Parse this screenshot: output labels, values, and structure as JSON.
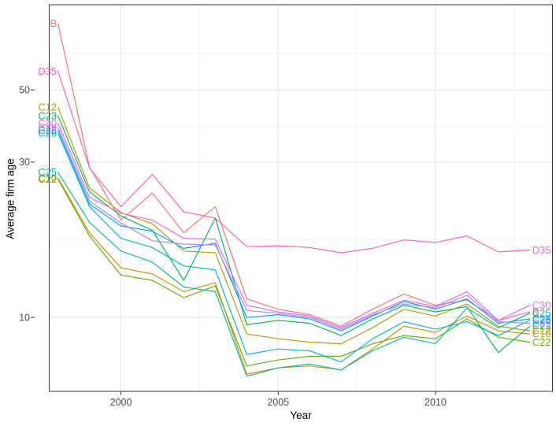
{
  "figure": {
    "kind": "line-chart-direct-labels",
    "background": "#ffffff",
    "panel_border_color": "#333333",
    "grid_major_color": "#e4e4e4",
    "grid_minor_color": "#efefef",
    "tick_color": "#333333",
    "tick_label_color": "#4d4d4d"
  },
  "chart_data": {
    "type": "line",
    "title": "",
    "xlabel": "Year",
    "ylabel": "Average firm age",
    "y_scale": "log10",
    "grid": true,
    "legend": "direct labels at both line ends",
    "x": [
      1998,
      1999,
      2000,
      2001,
      2002,
      2003,
      2004,
      2005,
      2006,
      2007,
      2008,
      2009,
      2010,
      2011,
      2012,
      2013
    ],
    "x_ticks": [
      2000,
      2005,
      2010
    ],
    "x_minor": [
      2002.5,
      2007.5,
      2012.5
    ],
    "xlim": [
      1997.72,
      2013.72
    ],
    "y_ticks": [
      10,
      30,
      50
    ],
    "y_minor": [
      17.3,
      38.7,
      64.6
    ],
    "ylim": [
      5.93,
      91.3
    ],
    "series": [
      {
        "name": "B",
        "color": "#F8766D",
        "values": [
          80.0,
          29.0,
          19.9,
          24.1,
          18.2,
          21.9,
          11.4,
          10.6,
          10.2,
          9.4,
          10.6,
          11.8,
          10.9,
          11.3,
          9.8,
          10.4
        ]
      },
      {
        "name": "C10",
        "color": "#DB8E00",
        "values": [
          26.8,
          18.2,
          14.2,
          13.6,
          12.0,
          12.8,
          6.7,
          7.0,
          7.1,
          6.9,
          8.0,
          9.4,
          9.0,
          10.1,
          9.1,
          8.9
        ]
      },
      {
        "name": "C12",
        "color": "#AEA200",
        "values": [
          44.2,
          25.0,
          21.0,
          19.4,
          16.0,
          15.8,
          8.9,
          8.6,
          8.4,
          8.3,
          9.3,
          10.6,
          10.1,
          11.0,
          9.4,
          9.1
        ]
      },
      {
        "name": "C22",
        "color": "#64B200",
        "values": [
          26.6,
          17.8,
          13.5,
          13.0,
          11.5,
          12.5,
          7.1,
          7.4,
          7.6,
          7.6,
          8.3,
          8.8,
          8.6,
          9.9,
          8.7,
          8.4
        ]
      },
      {
        "name": "C23",
        "color": "#00BD5C",
        "values": [
          41.6,
          24.3,
          20.5,
          18.5,
          13.0,
          20.2,
          9.5,
          9.8,
          9.6,
          8.8,
          9.9,
          10.9,
          10.4,
          10.8,
          7.8,
          9.4
        ]
      },
      {
        "name": "C25",
        "color": "#00C1A7",
        "values": [
          27.9,
          19.6,
          16.0,
          14.8,
          12.4,
          12.0,
          6.6,
          7.0,
          7.2,
          6.9,
          7.9,
          8.7,
          8.3,
          10.7,
          9.3,
          10.3
        ]
      },
      {
        "name": "C26",
        "color": "#00BADE",
        "values": [
          36.8,
          21.9,
          17.5,
          16.4,
          14.4,
          14.0,
          7.7,
          8.0,
          7.9,
          7.3,
          8.6,
          9.7,
          9.2,
          9.7,
          8.8,
          9.8
        ]
      },
      {
        "name": "C28",
        "color": "#00A6FF",
        "values": [
          37.5,
          22.3,
          19.1,
          18.4,
          16.3,
          16.9,
          10.0,
          10.2,
          9.9,
          9.1,
          10.1,
          11.2,
          10.6,
          11.4,
          9.6,
          9.9
        ]
      },
      {
        "name": "C29",
        "color": "#B385FF",
        "values": [
          38.3,
          22.8,
          19.5,
          17.2,
          16.8,
          16.7,
          10.5,
          10.3,
          10.0,
          9.2,
          10.2,
          11.0,
          10.7,
          11.7,
          9.7,
          9.6
        ]
      },
      {
        "name": "C30",
        "color": "#EF67EB",
        "values": [
          39.5,
          23.4,
          20.9,
          19.9,
          17.5,
          17.4,
          10.9,
          10.4,
          10.1,
          9.3,
          10.3,
          11.3,
          10.8,
          12.0,
          9.8,
          10.9
        ]
      },
      {
        "name": "D35",
        "color": "#FF63B6",
        "values": [
          57.0,
          28.8,
          21.9,
          27.5,
          21.1,
          20.2,
          16.5,
          16.6,
          16.4,
          15.8,
          16.3,
          17.3,
          17.0,
          17.8,
          15.9,
          16.1
        ]
      }
    ]
  }
}
